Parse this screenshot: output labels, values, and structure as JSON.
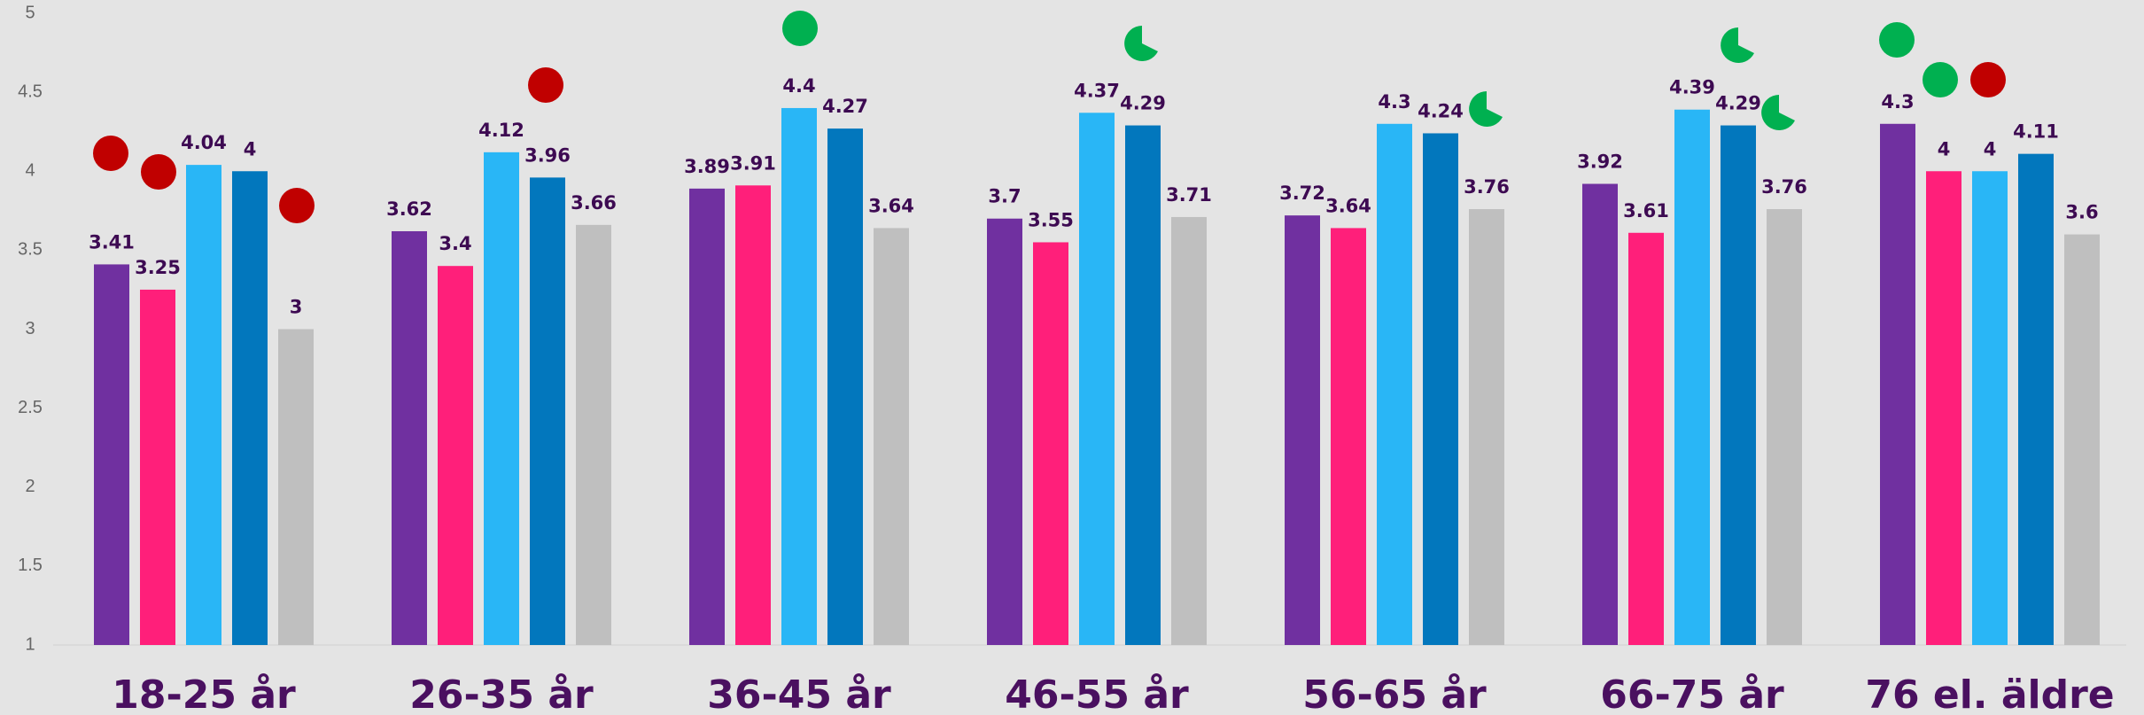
{
  "chart_data": {
    "type": "bar",
    "categories": [
      "18-25 år",
      "26-35 år",
      "36-45 år",
      "46-55 år",
      "56-65 år",
      "66-75 år",
      "76 el. äldre"
    ],
    "series": [
      {
        "color": "#7030a0",
        "values": [
          3.41,
          3.62,
          3.89,
          3.7,
          3.72,
          3.92,
          4.3
        ]
      },
      {
        "color": "#ff1f7a",
        "values": [
          3.25,
          3.4,
          3.91,
          3.55,
          3.64,
          3.61,
          4
        ]
      },
      {
        "color": "#29b6f6",
        "values": [
          4.04,
          4.12,
          4.4,
          4.37,
          4.3,
          4.39,
          4
        ]
      },
      {
        "color": "#0277bd",
        "values": [
          4,
          3.96,
          4.27,
          4.29,
          4.24,
          4.29,
          4.11
        ]
      },
      {
        "color": "#bfbfbf",
        "values": [
          3,
          3.66,
          3.64,
          3.71,
          3.76,
          3.76,
          3.6
        ]
      }
    ],
    "ylim": [
      1,
      5
    ],
    "yticks": [
      1,
      1.5,
      2,
      2.5,
      3,
      3.5,
      4,
      4.5,
      5
    ],
    "grid": false
  }
}
